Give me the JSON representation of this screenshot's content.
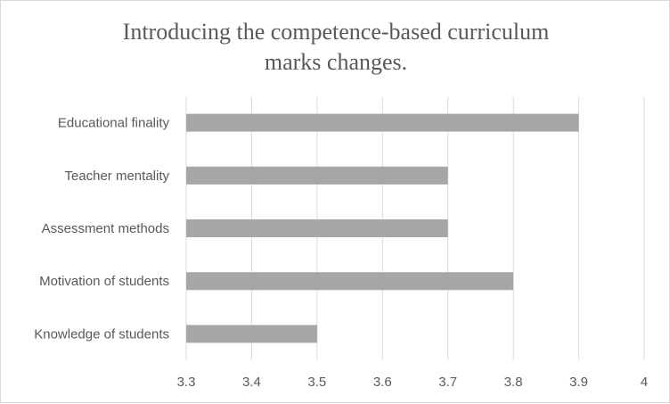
{
  "chart_data": {
    "type": "bar",
    "orientation": "horizontal",
    "title_lines": [
      "Introducing the competence-based curriculum",
      "marks changes."
    ],
    "categories": [
      "Educational finality",
      "Teacher mentality",
      "Assessment methods",
      "Motivation of students",
      "Knowledge of students"
    ],
    "values": [
      3.9,
      3.7,
      3.7,
      3.8,
      3.5
    ],
    "xlim": [
      3.3,
      4.0
    ],
    "xticks": [
      "3.3",
      "3.4",
      "3.5",
      "3.6",
      "3.7",
      "3.8",
      "3.9",
      "4"
    ],
    "xlabel": "",
    "ylabel": "",
    "grid": "vertical",
    "legend": "none",
    "colors": {
      "bar": "#a6a6a6",
      "grid": "#d9d9d9",
      "text": "#595959",
      "title": "#595959"
    }
  }
}
